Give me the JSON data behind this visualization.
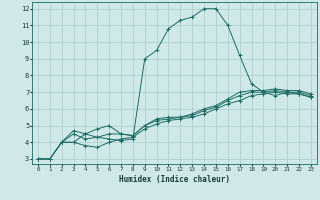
{
  "xlabel": "Humidex (Indice chaleur)",
  "bg_color": "#cee9e8",
  "grid_color": "#aacccc",
  "line_color": "#1e6b65",
  "xlim": [
    -0.5,
    23.5
  ],
  "ylim": [
    2.7,
    12.4
  ],
  "xticks": [
    0,
    1,
    2,
    3,
    4,
    5,
    6,
    7,
    8,
    9,
    10,
    11,
    12,
    13,
    14,
    15,
    16,
    17,
    18,
    19,
    20,
    21,
    22,
    23
  ],
  "yticks": [
    3,
    4,
    5,
    6,
    7,
    8,
    9,
    10,
    11,
    12
  ],
  "series": [
    {
      "x": [
        0,
        1,
        2,
        3,
        4,
        5,
        6,
        7,
        8,
        9,
        10,
        11,
        12,
        13,
        14,
        15,
        16,
        17,
        18,
        19,
        20,
        21,
        22,
        23
      ],
      "y": [
        3.0,
        3.0,
        4.0,
        4.0,
        3.8,
        3.7,
        4.0,
        4.2,
        4.3,
        4.8,
        5.1,
        5.3,
        5.4,
        5.5,
        5.7,
        6.0,
        6.3,
        6.5,
        6.8,
        6.9,
        7.0,
        6.9,
        6.9,
        6.7
      ]
    },
    {
      "x": [
        0,
        1,
        2,
        3,
        4,
        5,
        6,
        7,
        8,
        9,
        10,
        11,
        12,
        13,
        14,
        15,
        16,
        17,
        18,
        19,
        20,
        21,
        22,
        23
      ],
      "y": [
        3.0,
        3.0,
        4.0,
        4.5,
        4.2,
        4.3,
        4.5,
        4.5,
        4.4,
        5.0,
        5.3,
        5.4,
        5.5,
        5.6,
        5.9,
        6.1,
        6.5,
        6.8,
        7.0,
        7.0,
        7.1,
        7.0,
        7.0,
        6.8
      ]
    },
    {
      "x": [
        0,
        1,
        2,
        3,
        4,
        5,
        6,
        7,
        8,
        9,
        10,
        11,
        12,
        13,
        14,
        15,
        16,
        17,
        18,
        19,
        20,
        21,
        22,
        23
      ],
      "y": [
        3.0,
        3.0,
        4.0,
        4.7,
        4.5,
        4.8,
        5.0,
        4.5,
        4.4,
        5.0,
        5.4,
        5.5,
        5.5,
        5.7,
        6.0,
        6.2,
        6.6,
        7.0,
        7.1,
        7.1,
        7.2,
        7.1,
        7.1,
        6.9
      ]
    },
    {
      "x": [
        2,
        3,
        4,
        5,
        6,
        7,
        8,
        9,
        10,
        11,
        12,
        13,
        14,
        15,
        16,
        17,
        18,
        19,
        20,
        21,
        22,
        23
      ],
      "y": [
        4.0,
        4.0,
        4.5,
        4.3,
        4.2,
        4.1,
        4.2,
        9.0,
        9.5,
        10.8,
        11.3,
        11.5,
        12.0,
        12.0,
        11.0,
        9.2,
        7.5,
        7.0,
        6.8,
        7.0,
        6.9,
        6.7
      ]
    }
  ]
}
